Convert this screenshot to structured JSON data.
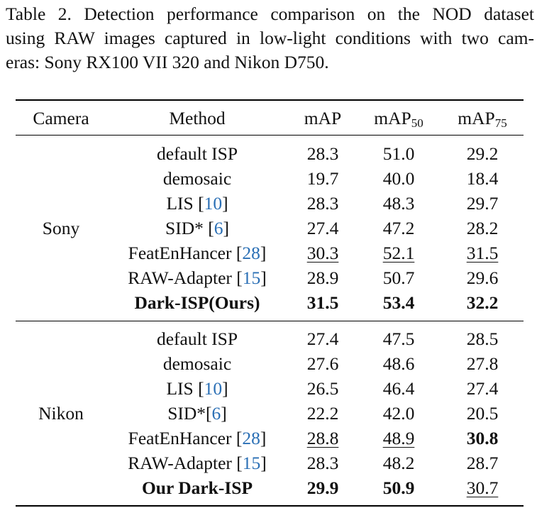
{
  "caption": {
    "lines": [
      "Table 2.  Detection performance comparison on the NOD dataset",
      "using RAW images captured in low-light conditions with two cam-",
      "eras: Sony RX100 VII 320 and Nikon D750."
    ]
  },
  "table": {
    "headers": {
      "camera": "Camera",
      "method": "Method",
      "map": "mAP",
      "map50_base": "mAP",
      "map50_sub": "50",
      "map75_base": "mAP",
      "map75_sub": "75"
    },
    "groups": [
      {
        "camera": "Sony",
        "rows": [
          {
            "method": "default ISP",
            "ref": "",
            "map": "28.3",
            "map50": "51.0",
            "map75": "29.2"
          },
          {
            "method": "demosaic",
            "ref": "",
            "map": "19.7",
            "map50": "40.0",
            "map75": "18.4"
          },
          {
            "method": "LIS [",
            "ref": "10",
            "close": "]",
            "map": "28.3",
            "map50": "48.3",
            "map75": "29.7"
          },
          {
            "method": "SID* [",
            "ref": "6",
            "close": "]",
            "map": "27.4",
            "map50": "47.2",
            "map75": "28.2"
          },
          {
            "method": "FeatEnHancer [",
            "ref": "28",
            "close": "]",
            "map": "30.3",
            "map50": "52.1",
            "map75": "31.5",
            "style": "underline"
          },
          {
            "method": "RAW-Adapter [",
            "ref": "15",
            "close": "]",
            "map": "28.9",
            "map50": "50.7",
            "map75": "29.6"
          },
          {
            "method": "Dark-ISP(Ours)",
            "ref": "",
            "map": "31.5",
            "map50": "53.4",
            "map75": "32.2",
            "style": "bold"
          }
        ]
      },
      {
        "camera": "Nikon",
        "rows": [
          {
            "method": "default ISP",
            "ref": "",
            "map": "27.4",
            "map50": "47.5",
            "map75": "28.5"
          },
          {
            "method": "demosaic",
            "ref": "",
            "map": "27.6",
            "map50": "48.6",
            "map75": "27.8"
          },
          {
            "method": "LIS [",
            "ref": "10",
            "close": "]",
            "map": "26.5",
            "map50": "46.4",
            "map75": "27.4"
          },
          {
            "method": "SID*[",
            "ref": "6",
            "close": "]",
            "map": "22.2",
            "map50": "42.0",
            "map75": "20.5"
          },
          {
            "method": "FeatEnHancer [",
            "ref": "28",
            "close": "]",
            "map": "28.8",
            "map50": "48.9",
            "map75": "30.8",
            "style": "mixed-fe"
          },
          {
            "method": "RAW-Adapter [",
            "ref": "15",
            "close": "]",
            "map": "28.3",
            "map50": "48.2",
            "map75": "28.7"
          },
          {
            "method": "Our Dark-ISP",
            "ref": "",
            "map": "29.9",
            "map50": "50.9",
            "map75": "30.7",
            "style": "mixed-ours"
          }
        ]
      }
    ]
  }
}
